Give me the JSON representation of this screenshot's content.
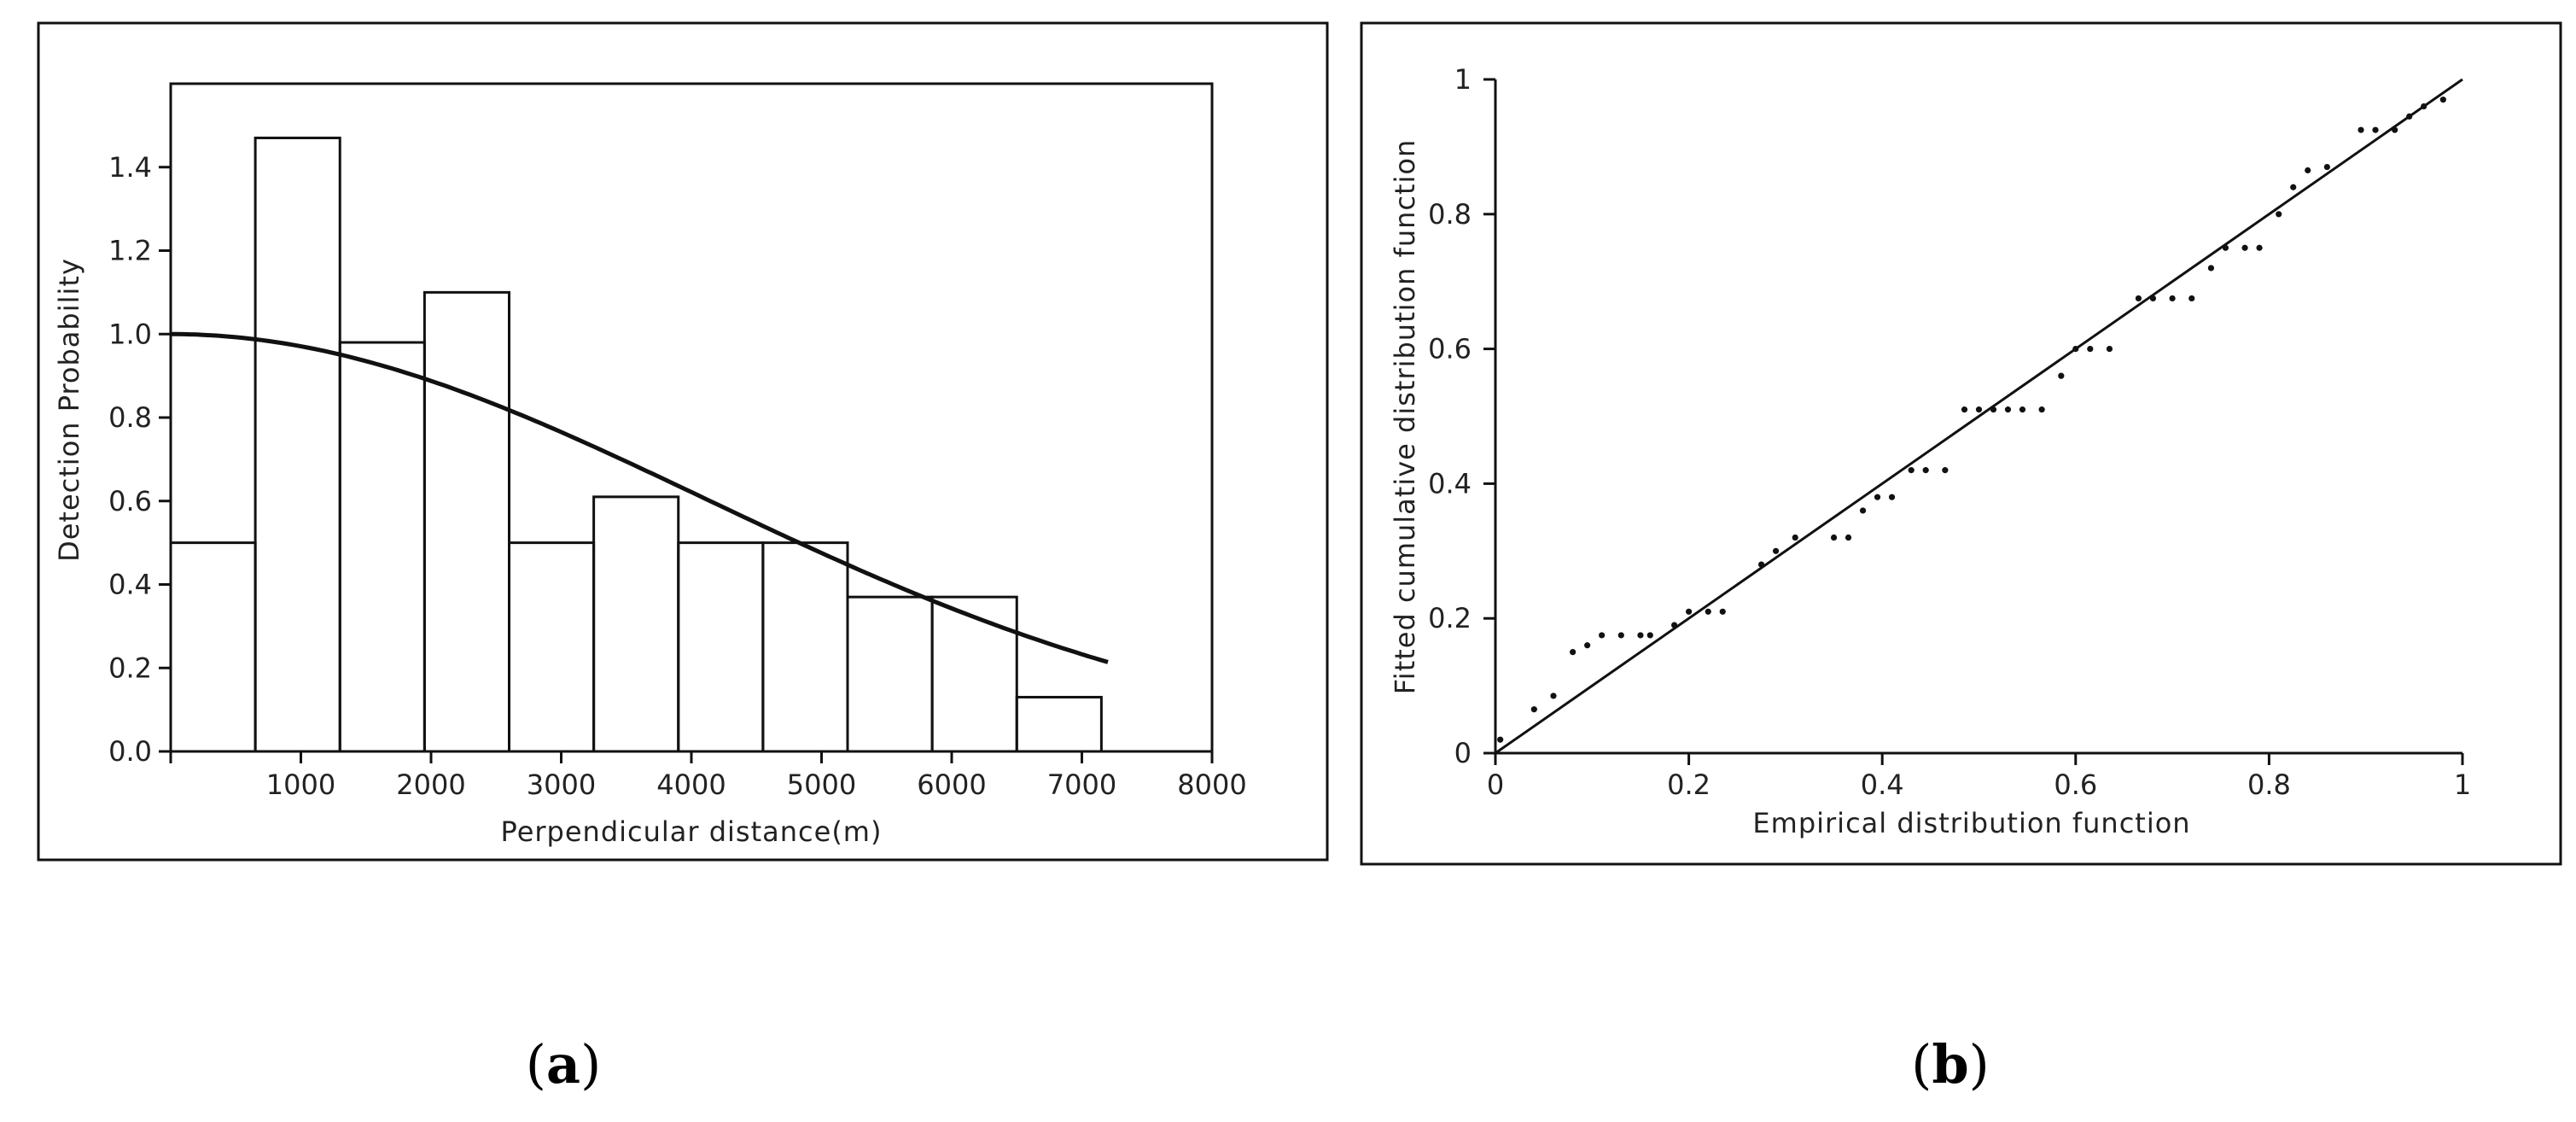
{
  "panels": {
    "a": {
      "caption_open": "(",
      "caption_letter": "a",
      "caption_close": ")"
    },
    "b": {
      "caption_open": "(",
      "caption_letter": "b",
      "caption_close": ")"
    }
  },
  "chart_data": [
    {
      "id": "a",
      "type": "bar",
      "xlabel": "Perpendicular distance(m)",
      "ylabel": "Detection Probability",
      "xlim": [
        0,
        8000
      ],
      "ylim": [
        0,
        1.6
      ],
      "xticks": [
        1000,
        2000,
        3000,
        4000,
        5000,
        6000,
        7000,
        8000
      ],
      "xtick_labels": [
        "1000",
        "2000",
        "3000",
        "4000",
        "5000",
        "6000",
        "7000",
        "8000"
      ],
      "yticks": [
        0.0,
        0.2,
        0.4,
        0.6,
        0.8,
        1.0,
        1.2,
        1.4
      ],
      "ytick_labels": [
        "0.0",
        "0.2",
        "0.4",
        "0.6",
        "0.8",
        "1.0",
        "1.2",
        "1.4"
      ],
      "bins": [
        {
          "x0": 0,
          "x1": 650,
          "value": 0.5
        },
        {
          "x0": 650,
          "x1": 1300,
          "value": 1.47
        },
        {
          "x0": 1300,
          "x1": 1950,
          "value": 0.98
        },
        {
          "x0": 1950,
          "x1": 2600,
          "value": 1.1
        },
        {
          "x0": 2600,
          "x1": 3250,
          "value": 0.5
        },
        {
          "x0": 3250,
          "x1": 3900,
          "value": 0.61
        },
        {
          "x0": 3900,
          "x1": 4550,
          "value": 0.5
        },
        {
          "x0": 4550,
          "x1": 5200,
          "value": 0.5
        },
        {
          "x0": 5200,
          "x1": 5850,
          "value": 0.37
        },
        {
          "x0": 5850,
          "x1": 6500,
          "value": 0.37
        },
        {
          "x0": 6500,
          "x1": 7150,
          "value": 0.13
        }
      ],
      "curve": {
        "type": "half-normal",
        "sigma": 4100,
        "x_max": 7200
      }
    },
    {
      "id": "b",
      "type": "scatter",
      "xlabel": "Empirical distribution function",
      "ylabel": "Fitted cumulative distribution function",
      "xlim": [
        0,
        1
      ],
      "ylim": [
        0,
        1
      ],
      "xticks": [
        0,
        0.2,
        0.4,
        0.6,
        0.8,
        1
      ],
      "xtick_labels": [
        "0",
        "0.2",
        "0.4",
        "0.6",
        "0.8",
        "1"
      ],
      "yticks": [
        0,
        0.2,
        0.4,
        0.6,
        0.8,
        1
      ],
      "ytick_labels": [
        "0",
        "0.2",
        "0.4",
        "0.6",
        "0.8",
        "1"
      ],
      "reference_line": {
        "from": [
          0,
          0
        ],
        "to": [
          1,
          1
        ]
      },
      "points": [
        [
          0.005,
          0.02
        ],
        [
          0.04,
          0.065
        ],
        [
          0.06,
          0.085
        ],
        [
          0.08,
          0.15
        ],
        [
          0.095,
          0.16
        ],
        [
          0.11,
          0.175
        ],
        [
          0.13,
          0.175
        ],
        [
          0.15,
          0.175
        ],
        [
          0.16,
          0.175
        ],
        [
          0.185,
          0.19
        ],
        [
          0.2,
          0.21
        ],
        [
          0.22,
          0.21
        ],
        [
          0.235,
          0.21
        ],
        [
          0.275,
          0.28
        ],
        [
          0.29,
          0.3
        ],
        [
          0.31,
          0.32
        ],
        [
          0.35,
          0.32
        ],
        [
          0.365,
          0.32
        ],
        [
          0.38,
          0.36
        ],
        [
          0.395,
          0.38
        ],
        [
          0.41,
          0.38
        ],
        [
          0.43,
          0.42
        ],
        [
          0.445,
          0.42
        ],
        [
          0.465,
          0.42
        ],
        [
          0.485,
          0.51
        ],
        [
          0.5,
          0.51
        ],
        [
          0.515,
          0.51
        ],
        [
          0.53,
          0.51
        ],
        [
          0.545,
          0.51
        ],
        [
          0.565,
          0.51
        ],
        [
          0.585,
          0.56
        ],
        [
          0.6,
          0.6
        ],
        [
          0.615,
          0.6
        ],
        [
          0.635,
          0.6
        ],
        [
          0.665,
          0.675
        ],
        [
          0.68,
          0.675
        ],
        [
          0.7,
          0.675
        ],
        [
          0.72,
          0.675
        ],
        [
          0.74,
          0.72
        ],
        [
          0.755,
          0.75
        ],
        [
          0.775,
          0.75
        ],
        [
          0.79,
          0.75
        ],
        [
          0.81,
          0.8
        ],
        [
          0.825,
          0.84
        ],
        [
          0.84,
          0.865
        ],
        [
          0.86,
          0.87
        ],
        [
          0.895,
          0.925
        ],
        [
          0.91,
          0.925
        ],
        [
          0.93,
          0.925
        ],
        [
          0.945,
          0.945
        ],
        [
          0.96,
          0.96
        ],
        [
          0.98,
          0.97
        ]
      ]
    }
  ]
}
